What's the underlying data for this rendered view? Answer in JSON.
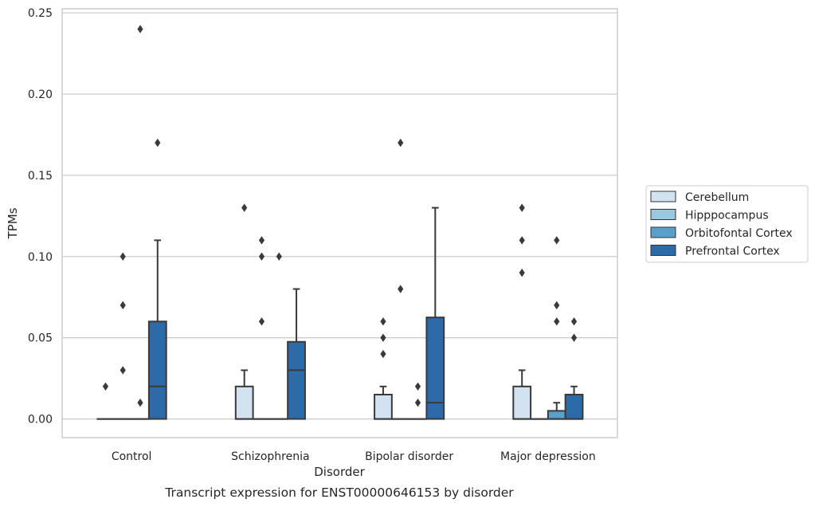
{
  "chart_data": {
    "type": "box",
    "caption": "Transcript expression for ENST00000646153 by disorder",
    "xlabel": "Disorder",
    "ylabel": "TPMs",
    "ylim": [
      -0.0115,
      0.2525
    ],
    "yticks": [
      0.0,
      0.05,
      0.1,
      0.15,
      0.2,
      0.25
    ],
    "ytick_labels": [
      "0.00",
      "0.05",
      "0.10",
      "0.15",
      "0.20",
      "0.25"
    ],
    "grid": true,
    "legend_position": "right",
    "categories": [
      "Control",
      "Schizophrenia",
      "Bipolar disorder",
      "Major depression"
    ],
    "series": [
      {
        "name": "Cerebellum",
        "color": "#d2e2f1",
        "boxes": [
          {
            "q1": 0,
            "median": 0,
            "q3": 0,
            "whisker_low": 0,
            "whisker_high": 0,
            "outliers": [
              0.02
            ]
          },
          {
            "q1": 0,
            "median": 0,
            "q3": 0.02,
            "whisker_low": 0,
            "whisker_high": 0.03,
            "outliers": [
              0.13
            ]
          },
          {
            "q1": 0,
            "median": 0,
            "q3": 0.015,
            "whisker_low": 0,
            "whisker_high": 0.02,
            "outliers": [
              0.04,
              0.05,
              0.06
            ]
          },
          {
            "q1": 0,
            "median": 0,
            "q3": 0.02,
            "whisker_low": 0,
            "whisker_high": 0.03,
            "outliers": [
              0.09,
              0.11,
              0.13
            ]
          }
        ]
      },
      {
        "name": "Hipppocampus",
        "color": "#9ac8e0",
        "boxes": [
          {
            "q1": 0,
            "median": 0,
            "q3": 0,
            "whisker_low": 0,
            "whisker_high": 0,
            "outliers": [
              0.03,
              0.07,
              0.1
            ]
          },
          {
            "q1": 0,
            "median": 0,
            "q3": 0,
            "whisker_low": 0,
            "whisker_high": 0,
            "outliers": [
              0.06,
              0.1,
              0.11
            ]
          },
          {
            "q1": 0,
            "median": 0,
            "q3": 0,
            "whisker_low": 0,
            "whisker_high": 0,
            "outliers": [
              0.08,
              0.17
            ]
          },
          {
            "q1": 0,
            "median": 0,
            "q3": 0,
            "whisker_low": 0,
            "whisker_high": 0,
            "outliers": []
          }
        ]
      },
      {
        "name": "Orbitofontal Cortex",
        "color": "#5aa0cd",
        "boxes": [
          {
            "q1": 0,
            "median": 0,
            "q3": 0,
            "whisker_low": 0,
            "whisker_high": 0,
            "outliers": [
              0.01,
              0.24
            ]
          },
          {
            "q1": 0,
            "median": 0,
            "q3": 0,
            "whisker_low": 0,
            "whisker_high": 0,
            "outliers": [
              0.1
            ]
          },
          {
            "q1": 0,
            "median": 0,
            "q3": 0,
            "whisker_low": 0,
            "whisker_high": 0,
            "outliers": [
              0.01,
              0.02
            ]
          },
          {
            "q1": 0,
            "median": 0,
            "q3": 0.005,
            "whisker_low": 0,
            "whisker_high": 0.01,
            "outliers": [
              0.06,
              0.07,
              0.11
            ]
          }
        ]
      },
      {
        "name": "Prefrontal Cortex",
        "color": "#2c6aa8",
        "boxes": [
          {
            "q1": 0,
            "median": 0.02,
            "q3": 0.06,
            "whisker_low": 0,
            "whisker_high": 0.11,
            "outliers": [
              0.17
            ]
          },
          {
            "q1": 0,
            "median": 0.03,
            "q3": 0.0475,
            "whisker_low": 0,
            "whisker_high": 0.08,
            "outliers": []
          },
          {
            "q1": 0,
            "median": 0.01,
            "q3": 0.0625,
            "whisker_low": 0,
            "whisker_high": 0.13,
            "outliers": []
          },
          {
            "q1": 0,
            "median": 0,
            "q3": 0.015,
            "whisker_low": 0,
            "whisker_high": 0.02,
            "outliers": [
              0.05,
              0.06
            ]
          }
        ]
      }
    ]
  }
}
